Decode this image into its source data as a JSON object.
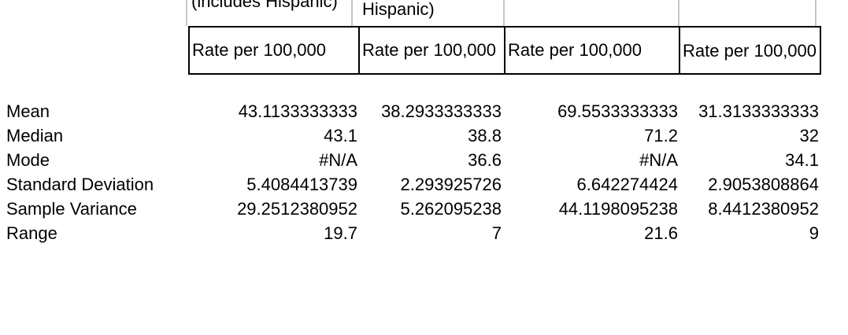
{
  "table": {
    "clipped_header_row": {
      "col1_partial": "(includes Hispanic)",
      "col2_partial": "Hispanic)"
    },
    "subheader_row": [
      "Rate per 100,000",
      "Rate per 100,000",
      "Rate per 100,000",
      "Rate per 100,000"
    ],
    "stats_rows": [
      {
        "label": "Mean",
        "values": [
          "43.1133333333",
          "38.2933333333",
          "69.5533333333",
          "31.3133333333"
        ]
      },
      {
        "label": "Median",
        "values": [
          "43.1",
          "38.8",
          "71.2",
          "32"
        ]
      },
      {
        "label": "Mode",
        "values": [
          "#N/A",
          "36.6",
          "#N/A",
          "34.1"
        ]
      },
      {
        "label": "Standard Deviation",
        "values": [
          "5.4084413739",
          "2.293925726",
          "6.642274424",
          "2.9053808864"
        ]
      },
      {
        "label": "Sample Variance",
        "values": [
          "29.2512380952",
          "5.262095238",
          "44.1198095238",
          "8.4412380952"
        ]
      },
      {
        "label": "Range",
        "values": [
          "19.7",
          "7",
          "21.6",
          "9"
        ]
      }
    ],
    "colors": {
      "background": "#ffffff",
      "text": "#000000",
      "table_border": "#000000",
      "gridline": "#c6c6c6"
    }
  }
}
